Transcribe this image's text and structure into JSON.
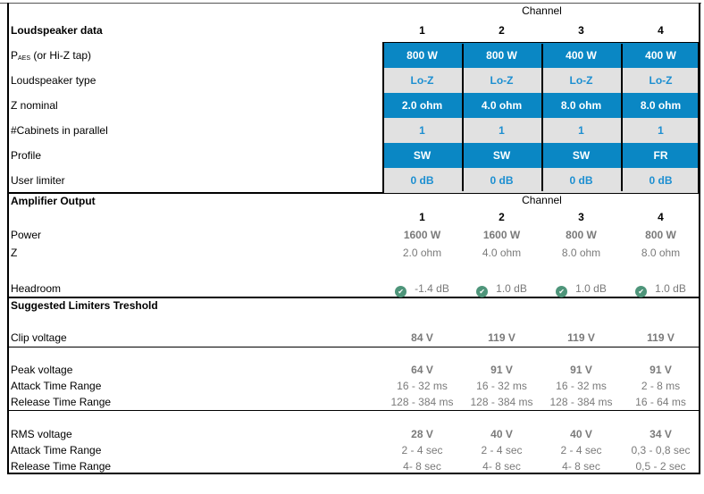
{
  "loudspeaker": {
    "title": "Loudspeaker data",
    "channel_header": "Channel",
    "channels": [
      "1",
      "2",
      "3",
      "4"
    ],
    "paes_label": {
      "main": "P",
      "sub": "AES",
      "rest": " (or Hi-Z tap)"
    },
    "rows": [
      {
        "label": "",
        "values": [
          "800 W",
          "800 W",
          "400 W",
          "400 W"
        ],
        "style": "blue"
      },
      {
        "label": "Loudspeaker type",
        "values": [
          "Lo-Z",
          "Lo-Z",
          "Lo-Z",
          "Lo-Z"
        ],
        "style": "grey"
      },
      {
        "label": "Z nominal",
        "values": [
          "2.0 ohm",
          "4.0 ohm",
          "8.0 ohm",
          "8.0 ohm"
        ],
        "style": "blue"
      },
      {
        "label": "#Cabinets in parallel",
        "values": [
          "1",
          "1",
          "1",
          "1"
        ],
        "style": "grey"
      },
      {
        "label": "Profile",
        "values": [
          "SW",
          "SW",
          "SW",
          "FR"
        ],
        "style": "blue"
      },
      {
        "label": "User limiter",
        "values": [
          "0 dB",
          "0 dB",
          "0 dB",
          "0 dB"
        ],
        "style": "grey"
      }
    ]
  },
  "amplifier": {
    "title": "Amplifier Output",
    "channel_header": "Channel",
    "channels": [
      "1",
      "2",
      "3",
      "4"
    ],
    "rows": [
      {
        "label": "Power",
        "values": [
          "1600 W",
          "1600 W",
          "800 W",
          "800 W"
        ],
        "bold": true
      },
      {
        "label": "Z",
        "values": [
          "2.0 ohm",
          "4.0 ohm",
          "8.0 ohm",
          "8.0 ohm"
        ],
        "bold": false
      }
    ],
    "headroom": {
      "label": "Headroom",
      "values": [
        "-1.4 dB",
        "1.0 dB",
        "1.0 dB",
        "1.0 dB"
      ],
      "icon": "check-circle-icon",
      "icon_color": "#4e957a"
    }
  },
  "limiters": {
    "title": "Suggested Limiters Treshold",
    "rows": [
      {
        "label": "Clip voltage",
        "values": [
          "84 V",
          "119 V",
          "119 V",
          "119 V"
        ],
        "bold": true
      },
      {
        "label": "Peak voltage",
        "values": [
          "64 V",
          "91 V",
          "91 V",
          "91 V"
        ],
        "bold": true
      },
      {
        "label": "Attack Time Range",
        "values": [
          "16 - 32 ms",
          "16 - 32 ms",
          "16 - 32 ms",
          "2 - 8 ms"
        ],
        "bold": false
      },
      {
        "label": "Release Time Range",
        "values": [
          "128 - 384 ms",
          "128 - 384 ms",
          "128 - 384 ms",
          "16 - 64 ms"
        ],
        "bold": false
      },
      {
        "label": "RMS voltage",
        "values": [
          "28 V",
          "40 V",
          "40 V",
          "34 V"
        ],
        "bold": true
      },
      {
        "label": "Attack Time Range",
        "values": [
          "2 - 4 sec",
          "2 - 4 sec",
          "2 - 4 sec",
          "0,3 - 0,8 sec"
        ],
        "bold": false
      },
      {
        "label": "Release Time Range",
        "values": [
          "4- 8 sec",
          "4- 8 sec",
          "4- 8 sec",
          "0,5 - 2 sec"
        ],
        "bold": false
      }
    ]
  },
  "colors": {
    "cell_blue": "#0a87c4",
    "cell_grey": "#e1e1e1",
    "value_blue": "#1d8fd1",
    "value_grey": "#7a7a7a"
  }
}
